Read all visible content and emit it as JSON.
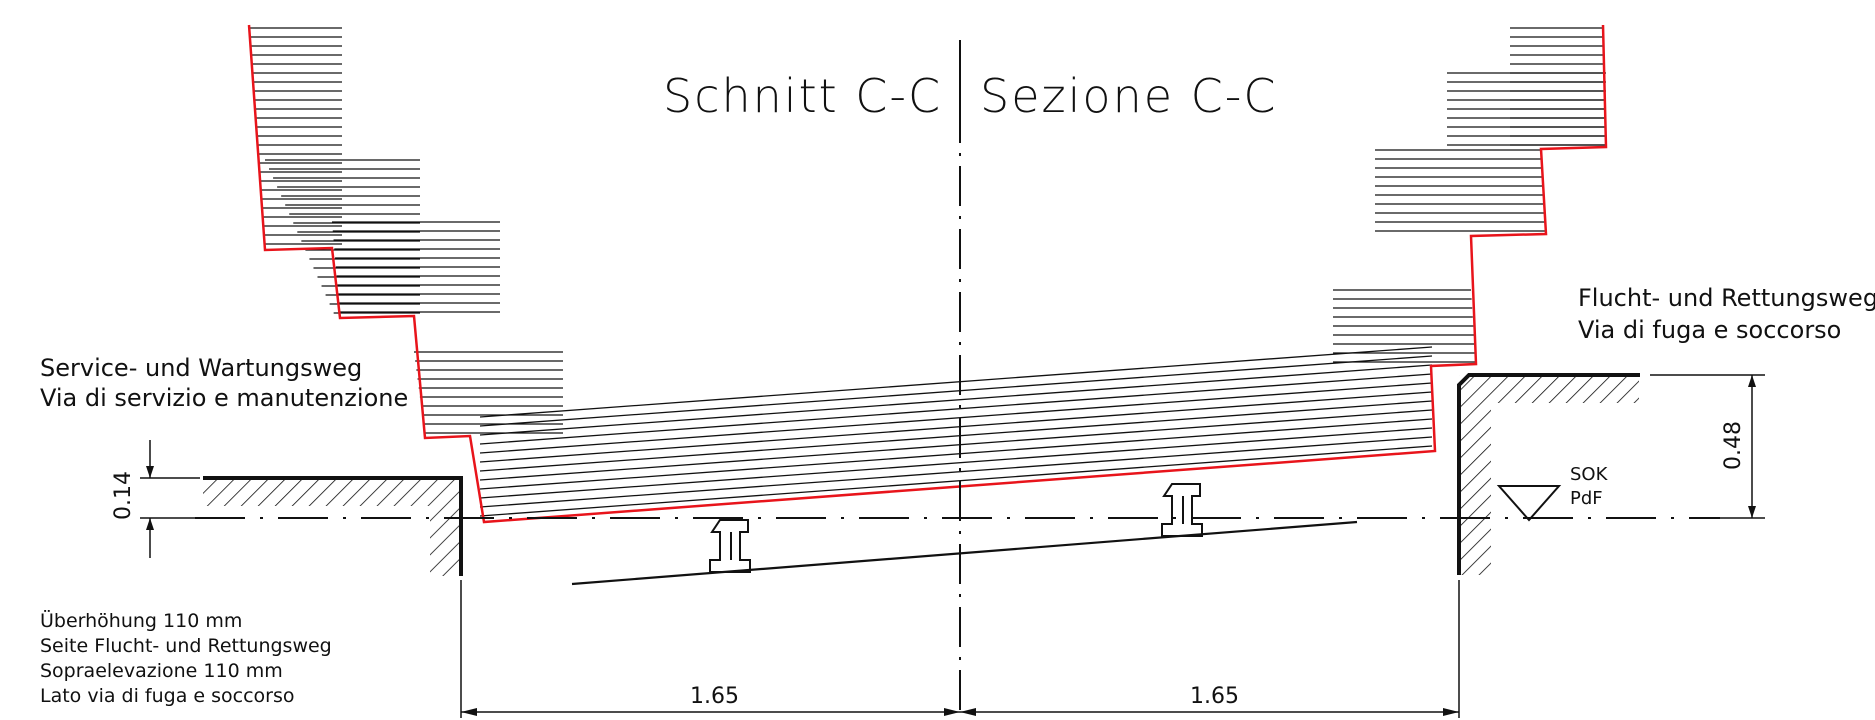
{
  "title": {
    "left": "Schnitt C-C",
    "right": "Sezione  C-C"
  },
  "left_walkway": {
    "line1": "Service- und Wartungsweg",
    "line2": "Via di servizio e manutenzione",
    "height_dim": "0.14"
  },
  "right_walkway": {
    "line1": "Flucht- und Rettungsweg",
    "line2": "Via di fuga e soccorso",
    "height_dim": "0.48"
  },
  "level_marker": {
    "line1": "SOK",
    "line2": "PdF"
  },
  "notes": [
    "Überhöhung 110 mm",
    "Seite Flucht- und Rettungsweg",
    "Sopraelevazione 110 mm",
    "Lato via di fuga e soccorso"
  ],
  "bottom_dims": {
    "left": "1.65",
    "right": "1.65"
  },
  "colors": {
    "outline": "#e8141b",
    "ink": "#111111"
  }
}
